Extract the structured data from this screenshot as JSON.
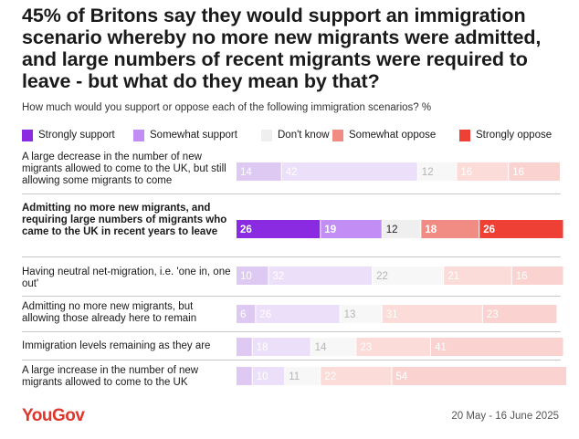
{
  "title": "45% of Britons say they would support an immigration scenario whereby no more new migrants were admitted, and large numbers of recent migrants were required to leave - but what do they mean by that?",
  "subtitle": "How much would you support or oppose each of the following immigration scenarios? %",
  "footer": {
    "logo": "YouGov",
    "date": "20 May - 16 June 2025"
  },
  "chart_data": {
    "type": "bar",
    "orientation": "horizontal-stacked",
    "title": "45% of Britons say they would support an immigration scenario whereby no more new migrants were admitted, and large numbers of recent migrants were required to leave - but what do they mean by that?",
    "xlabel": "",
    "ylabel": "",
    "xlim": [
      0,
      100
    ],
    "highlight_index": 1,
    "colors": {
      "strong_support": "#8a2be2",
      "somewhat_support": "#c28ef5",
      "dont_know": "#efefef",
      "somewhat_oppose": "#f08c84",
      "strongly_oppose": "#ee4034"
    },
    "faded_colors": {
      "strong_support": "#ddc9f2",
      "somewhat_support": "#ecdffa",
      "dont_know": "#f7f7f7",
      "somewhat_oppose": "#fbdcd9",
      "strongly_oppose": "#fad3d0"
    },
    "series": [
      {
        "name": "Strongly support",
        "key": "strong_support",
        "values": [
          14,
          26,
          10,
          6,
          5,
          5
        ]
      },
      {
        "name": "Somewhat support",
        "key": "somewhat_support",
        "values": [
          42,
          19,
          32,
          26,
          18,
          10
        ]
      },
      {
        "name": "Don't know",
        "key": "dont_know",
        "values": [
          12,
          12,
          22,
          13,
          14,
          11
        ]
      },
      {
        "name": "Somewhat oppose",
        "key": "somewhat_oppose",
        "values": [
          16,
          18,
          21,
          31,
          23,
          22
        ]
      },
      {
        "name": "Strongly oppose",
        "key": "strongly_oppose",
        "values": [
          16,
          26,
          16,
          23,
          41,
          54
        ]
      }
    ],
    "labels_shown": [
      [
        "14",
        "42",
        "12",
        "16",
        "16"
      ],
      [
        "26",
        "19",
        "12",
        "18",
        "26"
      ],
      [
        "10",
        "32",
        "22",
        "21",
        "16"
      ],
      [
        "6",
        "26",
        "13",
        "31",
        "23"
      ],
      [
        "",
        "18",
        "14",
        "23",
        "41"
      ],
      [
        "",
        "10",
        "11",
        "22",
        "54"
      ]
    ],
    "categories": [
      "A large decrease in the number of new migrants allowed to come to the UK, but still allowing some migrants to come",
      "Admitting no more new migrants, and requiring large numbers of migrants who came to the UK in recent years to leave",
      "Having neutral net-migration, i.e. 'one in, one out'",
      "Admitting no more new migrants, but allowing those already here to remain",
      "Immigration levels remaining as they are",
      "A large increase in the number of new migrants allowed to come to the UK"
    ]
  }
}
